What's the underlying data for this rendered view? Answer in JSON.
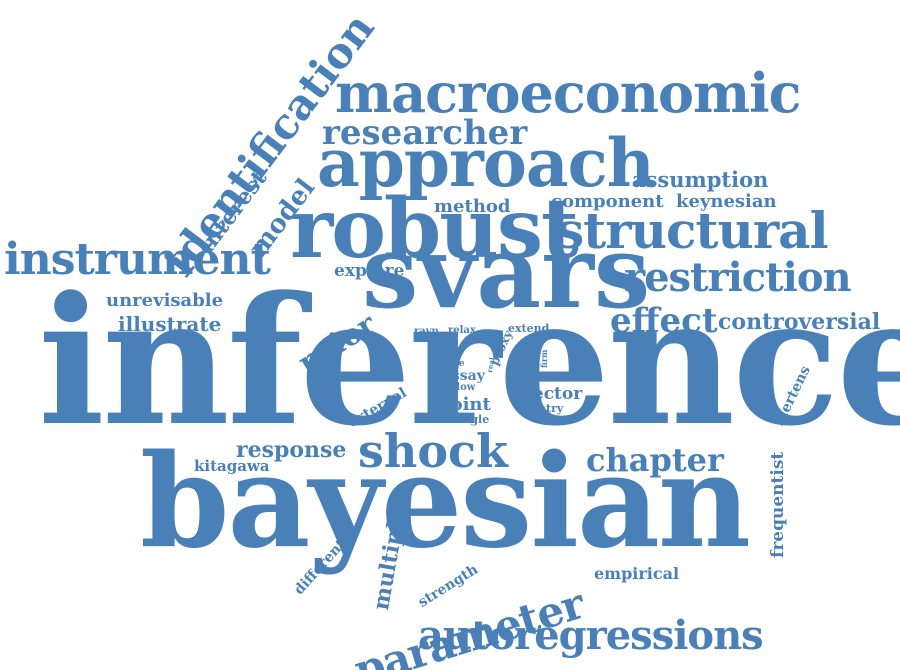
{
  "color": "#4a80b8",
  "words": {
    "inference": "inference",
    "bayesian": "bayesian",
    "svars": "svars",
    "robust": "robust",
    "approach": "approach",
    "macroeconomic": "macroeconomic",
    "identification": "identification",
    "structural": "structural",
    "restriction": "restriction",
    "instrument": "instrument",
    "shock": "shock",
    "autoregressions": "autoregressions",
    "parameter": "parameter",
    "researcher": "researcher",
    "effect": "effect",
    "chapter": "chapter",
    "prior": "prior",
    "model": "model",
    "interest": "interest",
    "response": "response",
    "controversial": "controversial",
    "assumption": "assumption",
    "component": "component",
    "keynesian": "keynesian",
    "method": "method",
    "explore": "explore",
    "unrevisable": "unrevisable",
    "illustrate": "illustrate",
    "multiple": "multiple",
    "frequentist": "frequentist",
    "mertens": "mertens",
    "empirical": "empirical",
    "different": "different",
    "strength": "strength",
    "kitagawa": "kitagawa",
    "external": "external",
    "point": "point",
    "vector": "vector",
    "essay": "essay",
    "single": "single",
    "entry": "entry",
    "allow": "allow",
    "rate": "rate",
    "proxy": "proxy",
    "extend": "extend",
    "relax": "relax",
    "ravn": "ravn",
    "firm": "firm",
    "real": "real"
  }
}
